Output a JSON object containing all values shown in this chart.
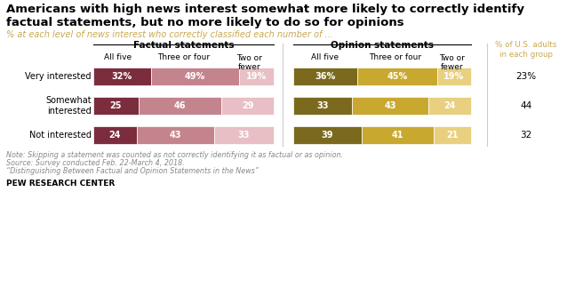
{
  "title": "Americans with high news interest somewhat more likely to correctly identify\nfactual statements, but no more likely to do so for opinions",
  "subtitle": "% at each level of news interest who correctly classified each number of ...",
  "rows": [
    "Very interested",
    "Somewhat\ninterested",
    "Not interested"
  ],
  "pct_adults": [
    "23%",
    "44",
    "32"
  ],
  "factual": {
    "all_five": [
      32,
      25,
      24
    ],
    "three_or_four": [
      49,
      46,
      43
    ],
    "two_or_fewer": [
      19,
      29,
      33
    ]
  },
  "opinion": {
    "all_five": [
      36,
      33,
      39
    ],
    "three_or_four": [
      45,
      43,
      41
    ],
    "two_or_fewer": [
      19,
      24,
      21
    ]
  },
  "factual_colors": [
    "#7b2d3e",
    "#c4848e",
    "#e8bfc4"
  ],
  "opinion_colors": [
    "#7b6a1e",
    "#c9a830",
    "#e8d080"
  ],
  "group_label_factual": "Factual statements",
  "group_label_opinion": "Opinion statements",
  "right_label": "% of U.S. adults\nin each group",
  "note1": "Note: Skipping a statement was counted as not correctly identifying it as factual or as opinion.",
  "note2": "Source: Survey conducted Feb. 22-March 4, 2018.",
  "note3": "“Distinguishing Between Factual and Opinion Statements in the News”",
  "source_label": "PEW RESEARCH CENTER",
  "background_color": "#ffffff",
  "title_color": "#000000",
  "subtitle_color": "#c8a951",
  "note_color": "#888888",
  "right_label_color": "#c8a951"
}
